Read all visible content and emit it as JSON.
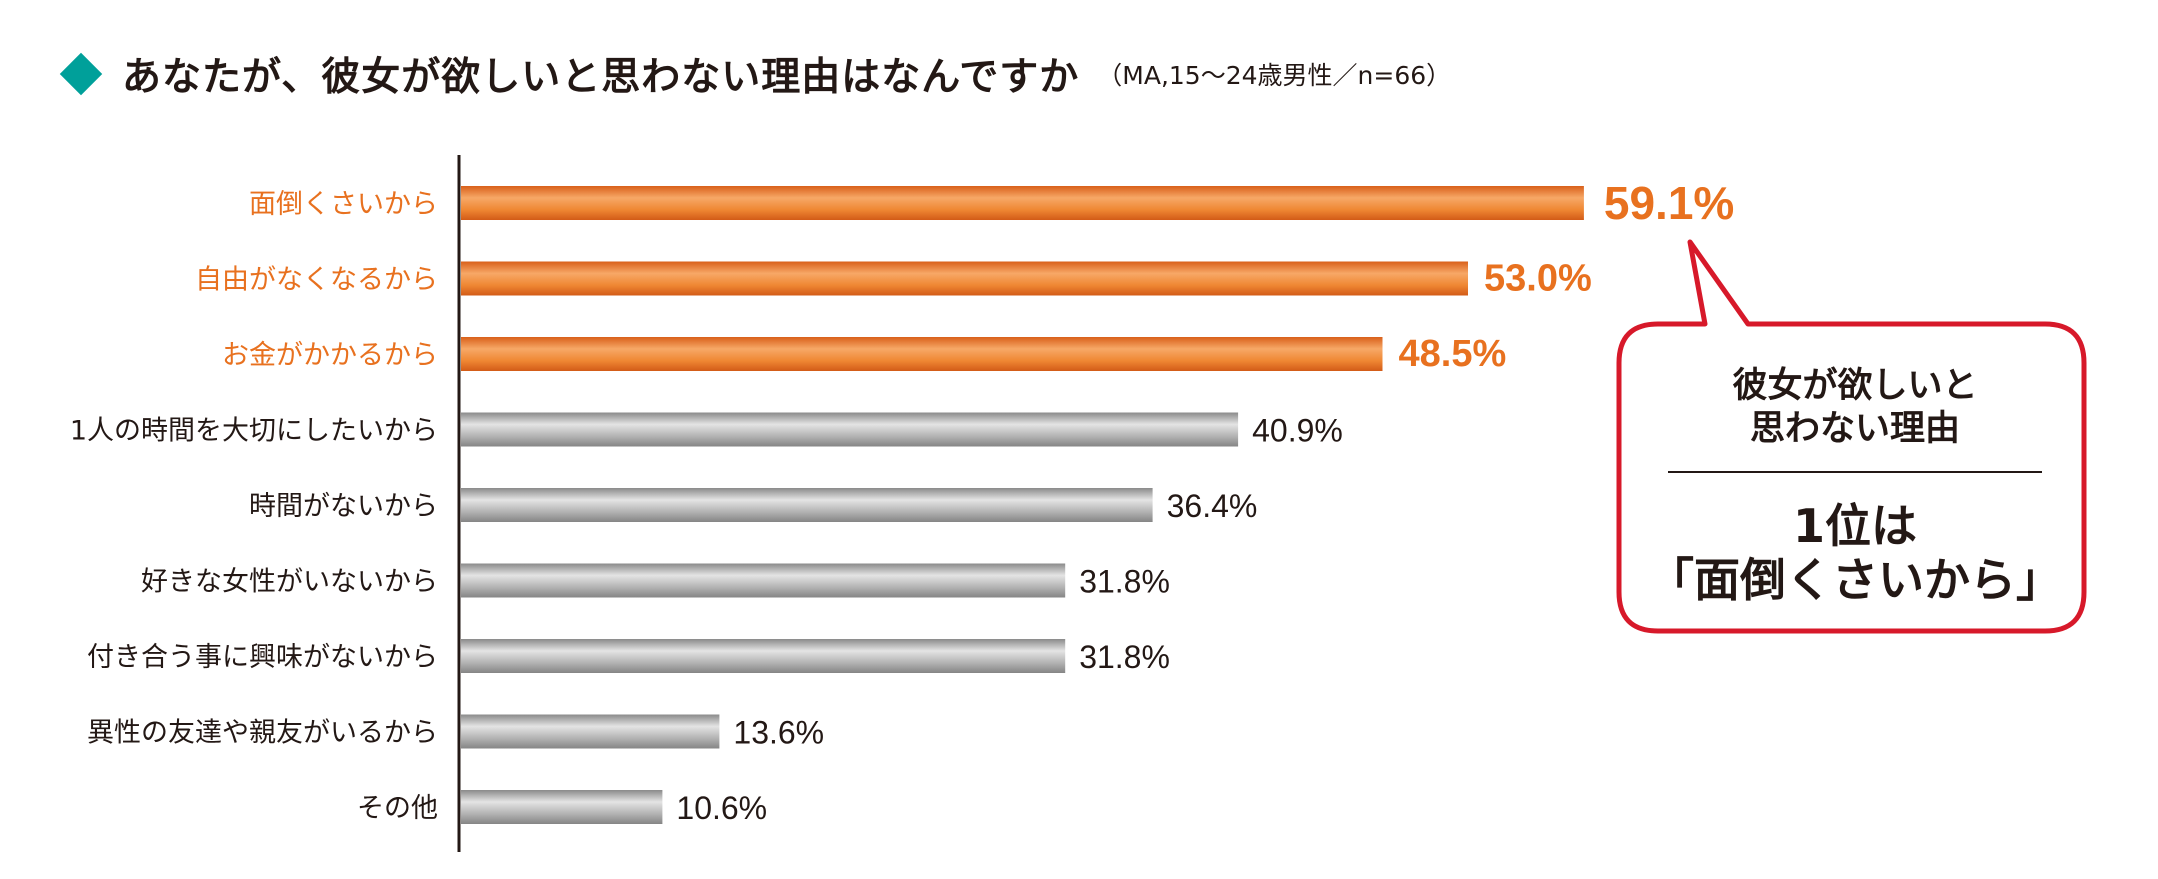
{
  "header": {
    "title": "あなたが、彼女が欲しいと思わない理由はなんですか",
    "subtitle": "（MA,15〜24歳男性／n=66）"
  },
  "colors": {
    "accent_teal": "#00a09a",
    "highlight_orange": "#e8711f",
    "neutral_gray": "#9d9d9d",
    "callout_red": "#d7192a"
  },
  "chart_data": {
    "type": "bar",
    "orientation": "horizontal",
    "categories": [
      "面倒くさいから",
      "自由がなくなるから",
      "お金がかかるから",
      "1人の時間を大切にしたいから",
      "時間がないから",
      "好きな女性がいないから",
      "付き合う事に興味がないから",
      "異性の友達や親友がいるから",
      "その他"
    ],
    "values": [
      59.1,
      53.0,
      48.5,
      40.9,
      36.4,
      31.8,
      31.8,
      13.6,
      10.6
    ],
    "labels": [
      "59.1%",
      "53.0%",
      "48.5%",
      "40.9%",
      "36.4%",
      "31.8%",
      "31.8%",
      "13.6%",
      "10.6%"
    ],
    "highlighted": [
      true,
      true,
      true,
      false,
      false,
      false,
      false,
      false,
      false
    ],
    "unit": "%",
    "xlim": [
      0,
      100
    ],
    "grid": false,
    "title": "あなたが、彼女が欲しいと思わない理由はなんですか",
    "subtitle": "（MA,15〜24歳男性／n=66）"
  },
  "callout": {
    "line1": "彼女が欲しいと",
    "line2": "思わない理由",
    "line3": "1位は",
    "line4": "「面倒くさいから」"
  }
}
